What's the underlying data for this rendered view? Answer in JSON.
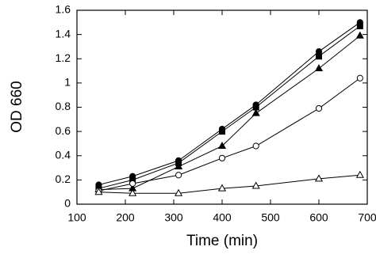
{
  "chart_data": {
    "type": "line",
    "xlabel": "Time (min)",
    "ylabel": "OD 660",
    "xlim": [
      100,
      700
    ],
    "xticks": [
      100,
      200,
      300,
      400,
      500,
      600,
      700
    ],
    "ylim": [
      0,
      1.6
    ],
    "yticks": [
      0,
      0.2,
      0.4,
      0.6,
      0.8,
      1,
      1.2,
      1.4,
      1.6
    ],
    "x": [
      145,
      215,
      310,
      400,
      470,
      600,
      685
    ],
    "series": [
      {
        "marker": "circle",
        "filled": true,
        "color": "#000000",
        "values": [
          0.16,
          0.23,
          0.36,
          0.62,
          0.82,
          1.26,
          1.5
        ]
      },
      {
        "marker": "square",
        "filled": true,
        "color": "#000000",
        "values": [
          0.13,
          0.2,
          0.34,
          0.6,
          0.8,
          1.22,
          1.47
        ]
      },
      {
        "marker": "triangle",
        "filled": true,
        "color": "#000000",
        "values": [
          0.12,
          0.13,
          0.31,
          0.48,
          0.75,
          1.12,
          1.39
        ]
      },
      {
        "marker": "circle",
        "filled": false,
        "color": "#000000",
        "values": [
          0.11,
          0.17,
          0.24,
          0.38,
          0.48,
          0.79,
          1.04
        ]
      },
      {
        "marker": "triangle",
        "filled": false,
        "color": "#000000",
        "values": [
          0.1,
          0.09,
          0.09,
          0.13,
          0.15,
          0.21,
          0.24
        ]
      }
    ]
  }
}
